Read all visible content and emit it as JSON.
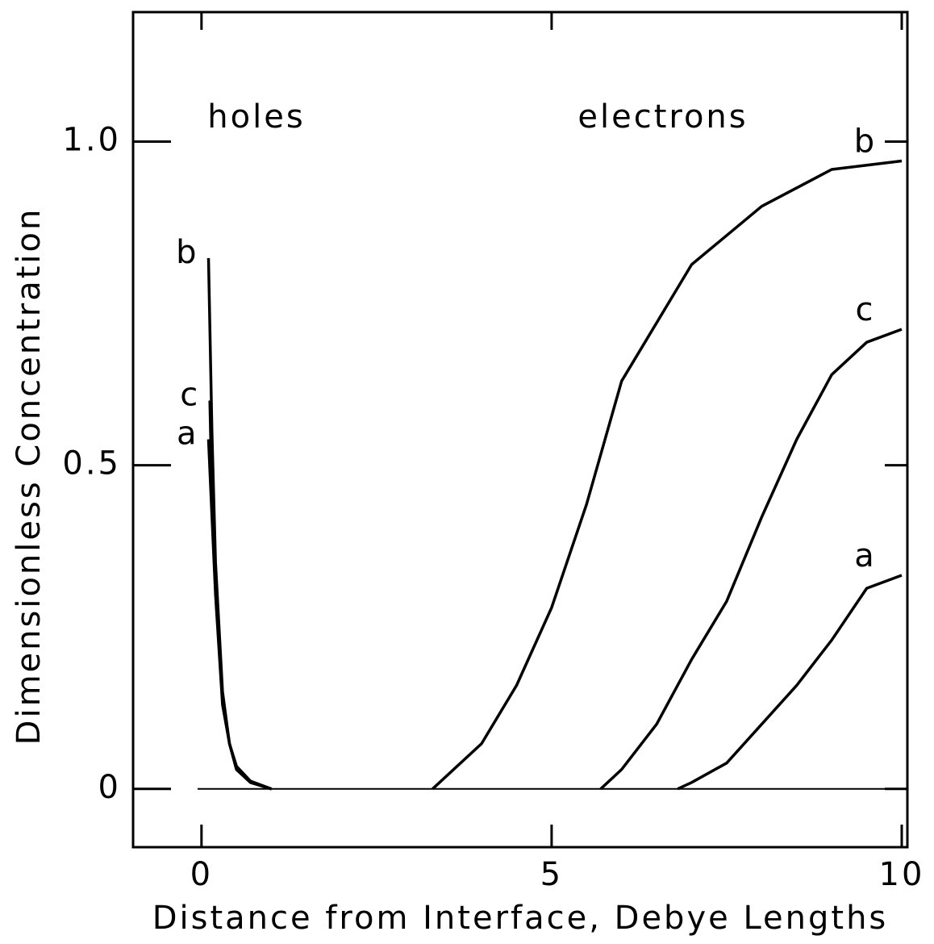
{
  "chart_data": {
    "type": "line",
    "xlabel": "Distance from  Interface, Debye Lengths",
    "ylabel": "Dimensionless  Concentration",
    "annotations": [
      "holes",
      "electrons"
    ],
    "xlim": [
      -1,
      10
    ],
    "ylim": [
      -0.09,
      1.2
    ],
    "xticks": [
      0,
      5,
      10
    ],
    "yticks": [
      0,
      0.5,
      {
        "value": 1,
        "label": "1.0"
      }
    ],
    "color": "#000000",
    "series": [
      {
        "name": "b",
        "group": "holes",
        "x": [
          0.1,
          0.15,
          0.2,
          0.3,
          0.4,
          0.5,
          0.7,
          1.0
        ],
        "values": [
          0.82,
          0.55,
          0.35,
          0.15,
          0.07,
          0.03,
          0.01,
          0
        ]
      },
      {
        "name": "c",
        "group": "holes",
        "x": [
          0.12,
          0.15,
          0.2,
          0.3,
          0.4,
          0.5,
          0.7,
          1.0
        ],
        "values": [
          0.6,
          0.45,
          0.32,
          0.14,
          0.07,
          0.03,
          0.01,
          0
        ]
      },
      {
        "name": "a",
        "group": "holes",
        "x": [
          0.1,
          0.15,
          0.2,
          0.3,
          0.4,
          0.5,
          0.7,
          1.0
        ],
        "values": [
          0.54,
          0.42,
          0.3,
          0.13,
          0.07,
          0.035,
          0.012,
          0
        ]
      },
      {
        "name": "b",
        "group": "electrons",
        "x": [
          3.3,
          4,
          4.5,
          5,
          5.5,
          6,
          7,
          8,
          9,
          10
        ],
        "values": [
          0,
          0.07,
          0.16,
          0.28,
          0.44,
          0.63,
          0.81,
          0.9,
          0.957,
          0.97
        ]
      },
      {
        "name": "c",
        "group": "electrons",
        "x": [
          5.7,
          6,
          6.5,
          7,
          7.5,
          8,
          8.5,
          9,
          9.5,
          10
        ],
        "values": [
          0,
          0.03,
          0.1,
          0.2,
          0.29,
          0.42,
          0.54,
          0.64,
          0.69,
          0.71
        ]
      },
      {
        "name": "a",
        "group": "electrons",
        "x": [
          6.8,
          7,
          7.5,
          8,
          8.5,
          9,
          9.5,
          10
        ],
        "values": [
          0,
          0.01,
          0.04,
          0.1,
          0.16,
          0.23,
          0.31,
          0.33
        ]
      }
    ]
  }
}
